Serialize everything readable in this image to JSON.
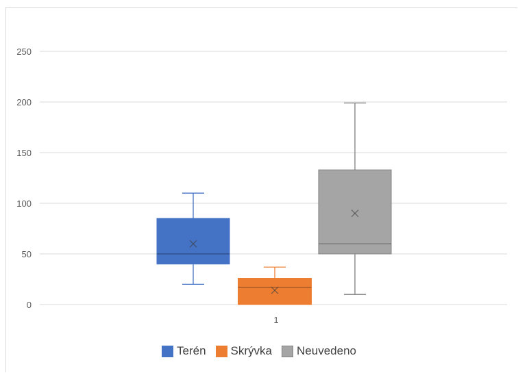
{
  "chart_data": {
    "type": "box",
    "categories": [
      "1"
    ],
    "ylim": [
      0,
      250
    ],
    "yticks": [
      0,
      50,
      100,
      150,
      200,
      250
    ],
    "grid": true,
    "legend_position": "bottom",
    "series": [
      {
        "name": "Terén",
        "color": "#4472c4",
        "min": 20,
        "q1": 40,
        "median": 50,
        "q3": 85,
        "max": 110,
        "mean": 60
      },
      {
        "name": "Skrývka",
        "color": "#ed7d31",
        "min": 0,
        "q1": 0,
        "median": 17,
        "q3": 26,
        "max": 37,
        "mean": 14
      },
      {
        "name": "Neuvedeno",
        "color": "#a5a5a5",
        "min": 10,
        "q1": 50,
        "median": 60,
        "q3": 133,
        "max": 199,
        "mean": 90
      }
    ]
  }
}
